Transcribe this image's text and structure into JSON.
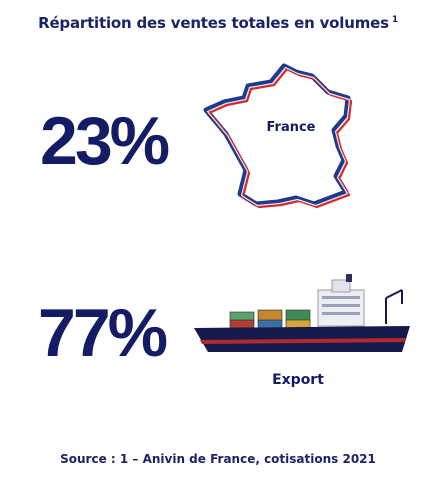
{
  "title": "Répartition des ventes totales en volumes",
  "title_footnote": "1",
  "chart_data": {
    "type": "table",
    "title": "Répartition des ventes totales en volumes",
    "categories": [
      "France",
      "Export"
    ],
    "values": [
      23,
      77
    ],
    "value_labels": [
      "23%",
      "77%"
    ],
    "unit": "%"
  },
  "source": "Source : 1 – Anivin de France, cotisations 2021",
  "colors": {
    "navy": "#141c66",
    "flag_blue": "#1f3a8a",
    "flag_red": "#d62828",
    "hull": "#151a4a"
  },
  "icons": [
    "france-map-icon",
    "cargo-ship-icon"
  ]
}
